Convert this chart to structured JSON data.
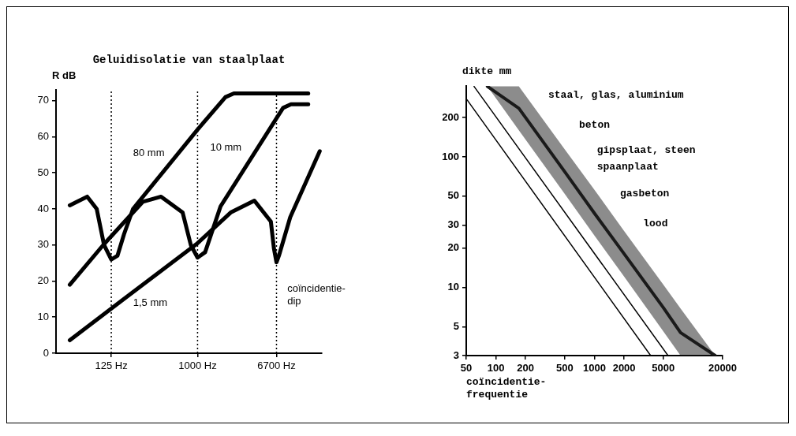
{
  "chart_data": [
    {
      "type": "line",
      "title": "Geluidisolatie van staalplaat",
      "ylabel": "R dB",
      "log": "x",
      "marker": "none",
      "xlim": [
        33,
        20000
      ],
      "xticks": [
        {
          "value": 125,
          "label": "125 Hz"
        },
        {
          "value": 1000,
          "label": "1000 Hz"
        },
        {
          "value": 6700,
          "label": "6700 Hz"
        }
      ],
      "ylim": [
        0,
        73
      ],
      "yticks": [
        0,
        10,
        20,
        30,
        40,
        50,
        60,
        70
      ],
      "series": [
        {
          "name": "80 mm",
          "color": "#000000",
          "x": [
            46,
            70,
            88,
            105,
            125,
            145,
            170,
            211,
            1000,
            1960,
            2400,
            14400
          ],
          "values": [
            41,
            43.4,
            40,
            30,
            26,
            27,
            33,
            40,
            62,
            71,
            72,
            72
          ]
        },
        {
          "name": "10 mm",
          "color": "#000000",
          "x": [
            46,
            103,
            211,
            268,
            415,
            698,
            850,
            1000,
            1200,
            1740,
            7850,
            9500,
            14400
          ],
          "values": [
            19,
            30,
            39,
            42,
            43.4,
            39,
            30,
            26.5,
            28,
            40.7,
            68,
            69,
            69
          ]
        },
        {
          "name": "1,5 mm",
          "color": "#000000",
          "x": [
            46,
            163,
            1000,
            2220,
            3930,
            5850,
            6300,
            6700,
            7100,
            9330,
            19000
          ],
          "values": [
            3.6,
            14.7,
            30.5,
            39,
            42.3,
            36.5,
            29,
            25.2,
            27,
            37.7,
            56
          ]
        }
      ],
      "ref_lines": [
        {
          "axis": "x",
          "value": 125,
          "line_style": "dotted"
        },
        {
          "axis": "x",
          "value": 1000,
          "line_style": "dotted"
        },
        {
          "axis": "x",
          "value": 6700,
          "line_style": "dotted"
        }
      ],
      "annotations": [
        "coïncidentie-\ndip"
      ]
    },
    {
      "type": "line",
      "ylabel": "dikte mm",
      "xlabel": "coïncidentie-\nfrequentie",
      "log": "xy",
      "marker": "none",
      "xlim": [
        50,
        20000
      ],
      "xticks": [
        50,
        100,
        200,
        500,
        1000,
        2000,
        5000,
        20000
      ],
      "ylim": [
        3,
        350
      ],
      "yticks": [
        3,
        5,
        10,
        20,
        30,
        50,
        100,
        200
      ],
      "series": [
        {
          "color": "#000000",
          "x": [
            51,
            3720
          ],
          "values": [
            274,
            3
          ]
        },
        {
          "color": "#000000",
          "x": [
            60,
            5580
          ],
          "values": [
            347,
            3
          ]
        },
        {
          "color": "#1a1a1a",
          "x": [
            82,
            171,
            500,
            1000,
            2000,
            5000,
            7480,
            16800
          ],
          "values": [
            347,
            236,
            77,
            37,
            18.1,
            7,
            4.5,
            3
          ],
          "lower": [
            347,
            160,
            52,
            25,
            12.1,
            4.6,
            3,
            3
          ],
          "upper": [
            347,
            347,
            114,
            56,
            27,
            10.5,
            6.9,
            3
          ]
        }
      ],
      "annotations": [
        "staal, glas, aluminium",
        "beton",
        "gipsplaat, steen",
        "spaanplaat",
        "gasbeton",
        "lood"
      ]
    }
  ]
}
